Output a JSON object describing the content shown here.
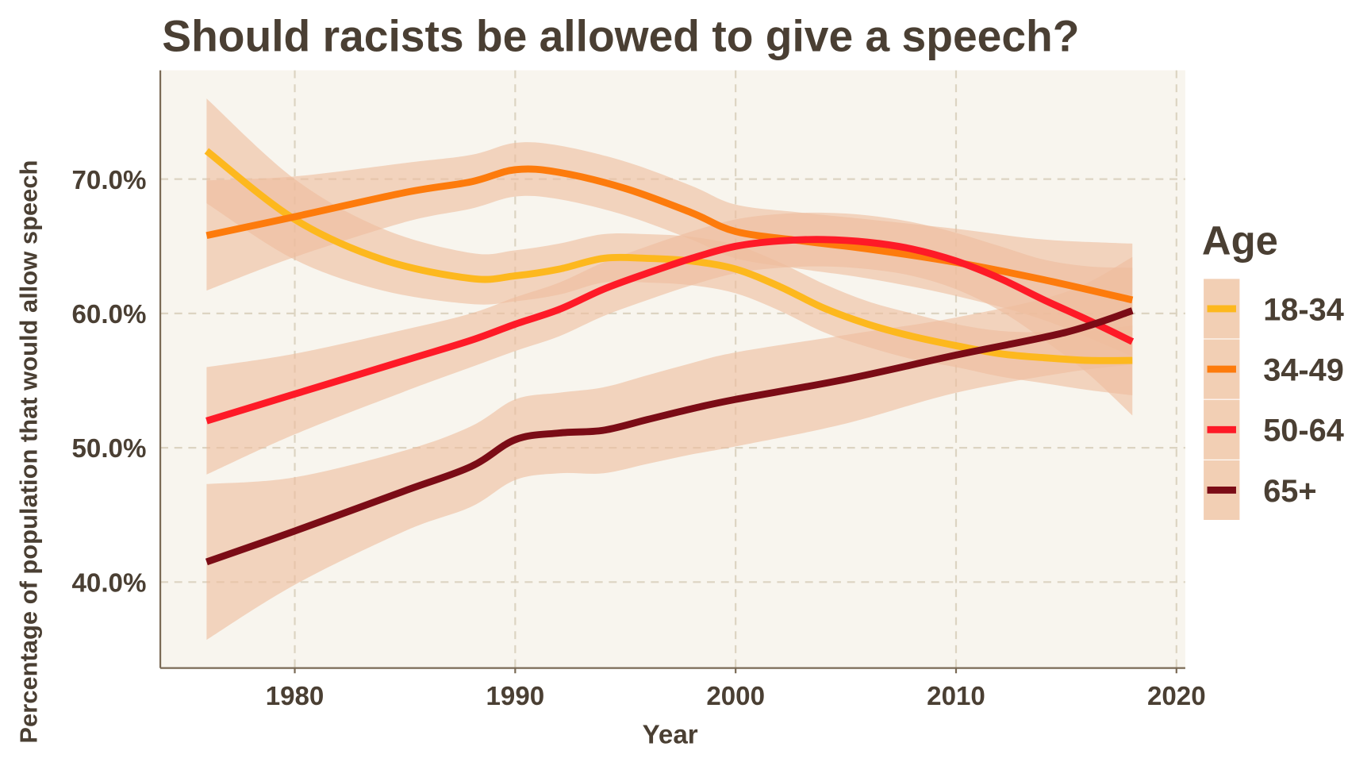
{
  "chart_data": {
    "type": "line",
    "title": "Should racists be allowed to give a speech?",
    "xlabel": "Year",
    "ylabel": "Percentage of population that would allow speech",
    "xlim": [
      1973.9,
      2020.4
    ],
    "ylim": [
      33.6,
      78.1
    ],
    "x_ticks": [
      1980,
      1990,
      2000,
      2010,
      2020
    ],
    "x_tick_labels": [
      "1980",
      "1990",
      "2000",
      "2010",
      "2020"
    ],
    "y_ticks": [
      40,
      50,
      60,
      70
    ],
    "y_tick_labels": [
      "40.0%",
      "50.0%",
      "60.0%",
      "70.0%"
    ],
    "grid": true,
    "legend": {
      "title": "Age",
      "position": "right"
    },
    "band_color": "#eebc9c",
    "series": [
      {
        "name": "18-34",
        "color": "#fdb81e",
        "x": [
          1976,
          1980,
          1984,
          1988,
          1990,
          1992,
          1994,
          1996,
          1998,
          2000,
          2002,
          2004,
          2006,
          2008,
          2010,
          2012,
          2014,
          2016,
          2018
        ],
        "y": [
          72.1,
          67.0,
          64.0,
          62.6,
          62.8,
          63.3,
          64.1,
          64.1,
          63.9,
          63.3,
          62.0,
          60.4,
          59.2,
          58.3,
          57.6,
          57.0,
          56.7,
          56.5,
          56.5
        ],
        "ci": [
          3.9,
          3.0,
          2.3,
          1.9,
          1.9,
          1.9,
          1.8,
          1.8,
          1.8,
          1.8,
          1.8,
          1.8,
          1.7,
          1.7,
          1.6,
          1.7,
          1.9,
          2.2,
          2.6
        ]
      },
      {
        "name": "34-49",
        "color": "#fd7b0c",
        "x": [
          1976,
          1980,
          1985,
          1988,
          1990,
          1992,
          1995,
          1998,
          2000,
          2003,
          2006,
          2010,
          2014,
          2018
        ],
        "y": [
          65.8,
          67.2,
          69.0,
          69.8,
          70.7,
          70.5,
          69.3,
          67.5,
          66.1,
          65.4,
          64.8,
          63.8,
          62.5,
          61.0
        ],
        "ci": [
          4.1,
          3.0,
          2.2,
          2.0,
          2.0,
          2.0,
          2.0,
          2.0,
          2.0,
          2.1,
          2.2,
          2.5,
          3.0,
          4.2
        ]
      },
      {
        "name": "50-64",
        "color": "#fe1a27",
        "x": [
          1976,
          1980,
          1985,
          1988,
          1990,
          1992,
          1994,
          1996,
          1998,
          2000,
          2002,
          2004,
          2006,
          2008,
          2010,
          2012,
          2014,
          2016,
          2018
        ],
        "y": [
          52.0,
          54.0,
          56.5,
          58.0,
          59.2,
          60.3,
          61.8,
          63.0,
          64.1,
          65.0,
          65.4,
          65.5,
          65.3,
          64.8,
          63.9,
          62.6,
          61.0,
          59.5,
          57.9
        ],
        "ci": [
          4.0,
          3.0,
          2.3,
          2.0,
          2.0,
          2.0,
          2.0,
          2.0,
          2.0,
          2.0,
          2.0,
          2.0,
          2.0,
          2.0,
          2.1,
          2.4,
          3.0,
          4.0,
          5.5
        ]
      },
      {
        "name": "65+",
        "color": "#7b0c16",
        "x": [
          1976,
          1980,
          1985,
          1988,
          1990,
          1992,
          1994,
          1996,
          1998,
          2000,
          2005,
          2010,
          2015,
          2018
        ],
        "y": [
          41.5,
          43.8,
          46.8,
          48.6,
          50.6,
          51.1,
          51.3,
          52.1,
          52.9,
          53.6,
          55.1,
          56.9,
          58.6,
          60.2
        ],
        "ci": [
          5.8,
          4.0,
          3.0,
          3.0,
          3.0,
          3.0,
          3.2,
          3.3,
          3.4,
          3.5,
          3.3,
          2.8,
          3.0,
          4.0
        ]
      }
    ]
  }
}
